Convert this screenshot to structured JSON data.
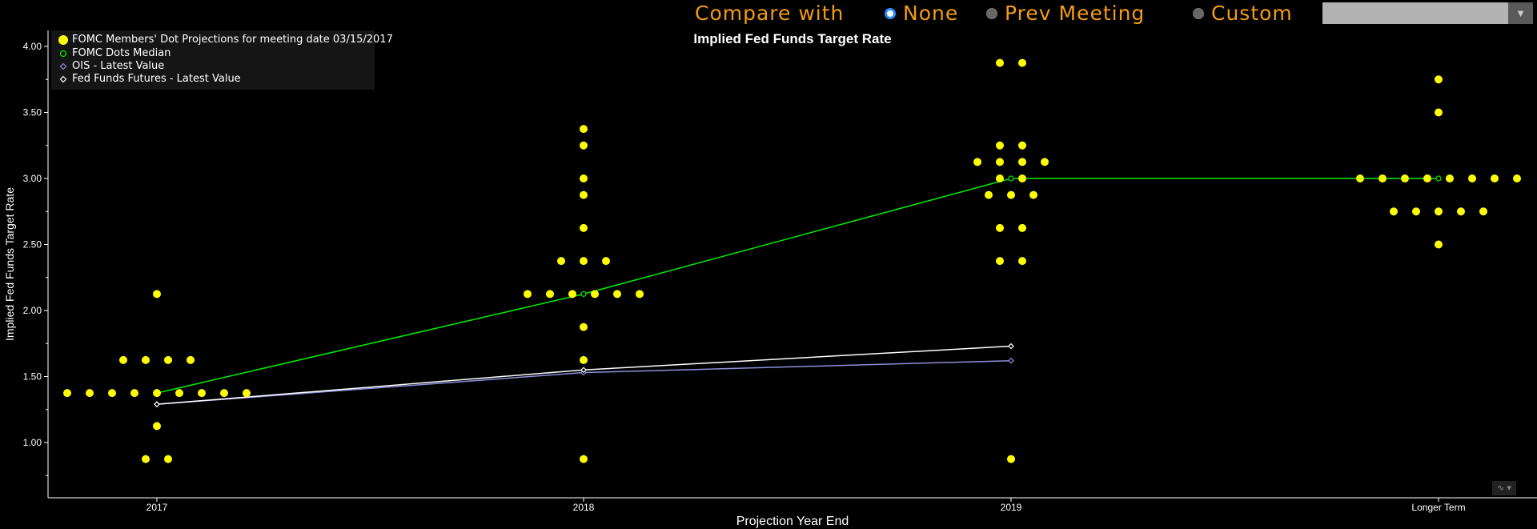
{
  "compare": {
    "label": "Compare with",
    "options": [
      {
        "label": "None",
        "selected": true
      },
      {
        "label": "Prev Meeting",
        "selected": false
      },
      {
        "label": "Custom",
        "selected": false
      }
    ],
    "custom_value": ""
  },
  "chart_data": {
    "type": "scatter",
    "title": "Implied Fed Funds Target Rate",
    "xlabel": "Projection Year End",
    "ylabel": "Implied Fed Funds Target Rate",
    "categories": [
      "2017",
      "2018",
      "2019",
      "Longer Term"
    ],
    "ylim": [
      0.5,
      4.1
    ],
    "yticks": [
      1.0,
      1.5,
      2.0,
      2.5,
      3.0,
      3.5,
      4.0
    ],
    "ytick_labels": [
      "1.00",
      "1.50",
      "2.00",
      "2.50",
      "3.00",
      "3.50",
      "4.00"
    ],
    "grid": false,
    "legend_position": "top-left",
    "series": [
      {
        "name": "FOMC Members' Dot Projections for meeting date 03/15/2017",
        "kind": "dots",
        "color": "#ffff00",
        "points": [
          {
            "x": "2017",
            "y": 0.875,
            "count": 2
          },
          {
            "x": "2017",
            "y": 1.125,
            "count": 1
          },
          {
            "x": "2017",
            "y": 1.375,
            "count": 9
          },
          {
            "x": "2017",
            "y": 1.625,
            "count": 4
          },
          {
            "x": "2017",
            "y": 2.125,
            "count": 1
          },
          {
            "x": "2018",
            "y": 0.875,
            "count": 1
          },
          {
            "x": "2018",
            "y": 1.625,
            "count": 1
          },
          {
            "x": "2018",
            "y": 1.875,
            "count": 1
          },
          {
            "x": "2018",
            "y": 2.125,
            "count": 6
          },
          {
            "x": "2018",
            "y": 2.375,
            "count": 3
          },
          {
            "x": "2018",
            "y": 2.625,
            "count": 1
          },
          {
            "x": "2018",
            "y": 2.875,
            "count": 1
          },
          {
            "x": "2018",
            "y": 3.0,
            "count": 1
          },
          {
            "x": "2018",
            "y": 3.25,
            "count": 1
          },
          {
            "x": "2018",
            "y": 3.375,
            "count": 1
          },
          {
            "x": "2019",
            "y": 0.875,
            "count": 1
          },
          {
            "x": "2019",
            "y": 2.375,
            "count": 2
          },
          {
            "x": "2019",
            "y": 2.625,
            "count": 2
          },
          {
            "x": "2019",
            "y": 2.875,
            "count": 3
          },
          {
            "x": "2019",
            "y": 3.0,
            "count": 2
          },
          {
            "x": "2019",
            "y": 3.125,
            "count": 4
          },
          {
            "x": "2019",
            "y": 3.25,
            "count": 2
          },
          {
            "x": "2019",
            "y": 3.875,
            "count": 2
          },
          {
            "x": "Longer Term",
            "y": 2.5,
            "count": 1
          },
          {
            "x": "Longer Term",
            "y": 2.75,
            "count": 5
          },
          {
            "x": "Longer Term",
            "y": 3.0,
            "count": 8
          },
          {
            "x": "Longer Term",
            "y": 3.5,
            "count": 1
          },
          {
            "x": "Longer Term",
            "y": 3.75,
            "count": 1
          }
        ]
      },
      {
        "name": "FOMC Dots Median",
        "kind": "line",
        "color": "#00ee00",
        "x": [
          "2017",
          "2018",
          "2019",
          "Longer Term"
        ],
        "values": [
          1.375,
          2.125,
          3.0,
          3.0
        ]
      },
      {
        "name": "OIS - Latest Value",
        "kind": "line",
        "color": "#8f8fdc",
        "x": [
          "2017",
          "2018",
          "2019"
        ],
        "values": [
          1.29,
          1.53,
          1.62
        ]
      },
      {
        "name": "Fed Funds Futures - Latest Value",
        "kind": "line",
        "color": "#ffffff",
        "x": [
          "2017",
          "2018",
          "2019"
        ],
        "values": [
          1.29,
          1.55,
          1.73
        ]
      }
    ]
  }
}
